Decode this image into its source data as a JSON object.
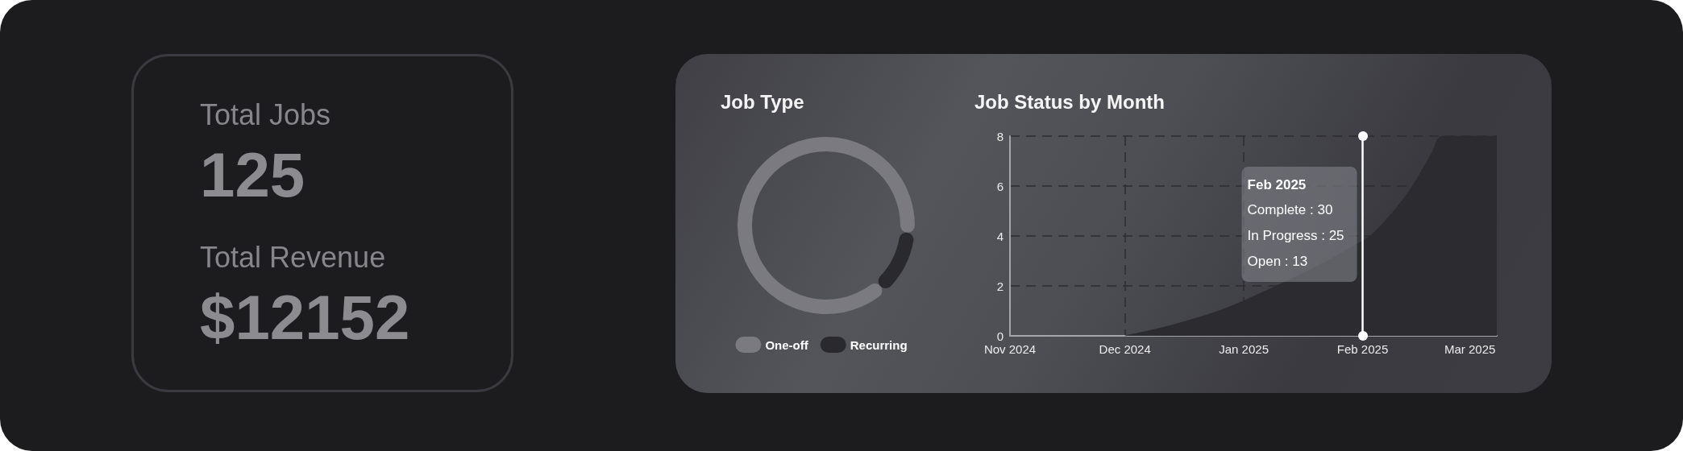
{
  "chart_data": [
    {
      "type": "other",
      "annotations": [
        "Total Jobs",
        "125",
        "Total Revenue",
        "$12152"
      ]
    },
    {
      "type": "donut",
      "title": "Job Type",
      "categories": [
        "One-off",
        "Recurring"
      ],
      "values": [
        88,
        12
      ],
      "colors": [
        "#7a7a80",
        "#29292e"
      ],
      "legend": "bottom"
    },
    {
      "type": "area",
      "title": "Job Status by Month",
      "x": [
        "2024-12-01",
        "2024-12-15",
        "2025-01-01",
        "2025-02-01",
        "2025-02-08",
        "2025-02-14",
        "2025-02-19",
        "2025-02-22",
        "2025-03-08"
      ],
      "series": [
        {
          "color": "#2b2b30",
          "values": [
            0,
            0.5,
            1.4,
            3.8,
            4.8,
            6.0,
            7.3,
            8,
            8
          ]
        }
      ],
      "xlim": [
        "2024-11-01",
        "2025-03-08"
      ],
      "xticks": [
        {
          "value": "2024-11-01",
          "label": "Nov 2024"
        },
        {
          "value": "2024-12-01",
          "label": "Dec 2024"
        },
        {
          "value": "2025-01-01",
          "label": "Jan 2025"
        },
        {
          "value": "2025-02-01",
          "label": "Feb 2025"
        },
        {
          "value": "2025-03-01",
          "label": "Mar 2025"
        }
      ],
      "ylim": [
        0,
        8
      ],
      "yticks": [
        0,
        2,
        4,
        6,
        8
      ],
      "grid": true,
      "ref_lines": [
        {
          "axis": "x",
          "value": "2025-02-01",
          "color": "#ffffff"
        }
      ],
      "annotations": [
        "Feb 2025",
        "Complete : 30",
        "In Progress : 25",
        "Open : 13"
      ]
    }
  ]
}
